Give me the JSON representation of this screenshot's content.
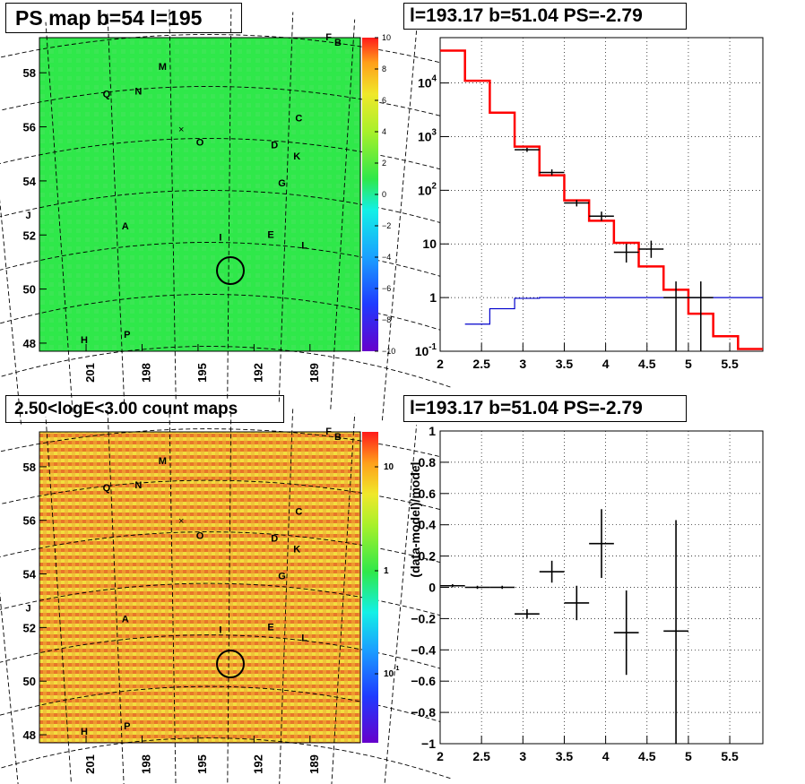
{
  "panels": {
    "tl_title": "PS map b=54 l=195",
    "tr_title": "l=193.17 b=51.04 PS=-2.79",
    "bl_title": "2.50<logE<3.00 count maps",
    "br_title": "l=193.17 b=51.04 PS=-2.79"
  },
  "colors": {
    "map_green": "#2fe84a",
    "count_orange": "#ee9a2c",
    "spectrum_red": "#ff0000",
    "spectrum_blue": "#0000cc",
    "data_black": "#000000"
  },
  "chart_data": [
    {
      "type": "heatmap",
      "panel": "top-left",
      "title": "PS map b=54 l=195",
      "x_ticks": [
        "201",
        "198",
        "195",
        "192",
        "189"
      ],
      "y_ticks": [
        "58",
        "56",
        "54",
        "52",
        "50",
        "48"
      ],
      "colorbar": {
        "range": [
          -10,
          10
        ],
        "ticks": [
          "10",
          "8",
          "6",
          "4",
          "2",
          "0",
          "−2",
          "−4",
          "−6",
          "−8",
          "−10"
        ]
      },
      "source_labels": [
        {
          "label": "F",
          "l": 188.0,
          "b": 59.2
        },
        {
          "label": "B",
          "l": 187.5,
          "b": 59.0
        },
        {
          "label": "M",
          "l": 196.9,
          "b": 58.1
        },
        {
          "label": "Q",
          "l": 199.9,
          "b": 57.1
        },
        {
          "label": "N",
          "l": 198.2,
          "b": 57.2
        },
        {
          "label": "C",
          "l": 189.6,
          "b": 56.2
        },
        {
          "label": "O",
          "l": 194.9,
          "b": 55.3
        },
        {
          "label": "D",
          "l": 190.9,
          "b": 55.2
        },
        {
          "label": "K",
          "l": 189.7,
          "b": 54.8
        },
        {
          "label": "G",
          "l": 190.5,
          "b": 53.8
        },
        {
          "label": "J",
          "l": 204.1,
          "b": 52.6
        },
        {
          "label": "A",
          "l": 198.9,
          "b": 52.2
        },
        {
          "label": "I",
          "l": 193.8,
          "b": 51.8
        },
        {
          "label": "E",
          "l": 191.1,
          "b": 51.9
        },
        {
          "label": "L",
          "l": 189.3,
          "b": 51.5
        },
        {
          "label": "H",
          "l": 201.1,
          "b": 48.0
        },
        {
          "label": "P",
          "l": 198.8,
          "b": 48.2
        }
      ],
      "marked_source": {
        "l": 193.17,
        "b": 51.04
      }
    },
    {
      "type": "line",
      "panel": "top-right",
      "title": "l=193.17 b=51.04 PS=-2.79",
      "x_ticks": [
        "2",
        "2.5",
        "3",
        "3.5",
        "4",
        "4.5",
        "5",
        "5.5"
      ],
      "y_ticks": [
        "10^-1",
        "1",
        "10",
        "10^2",
        "10^3",
        "10^4"
      ],
      "xlim": [
        2,
        5.9
      ],
      "ylim": [
        0.1,
        70000
      ],
      "yscale": "log",
      "grid": true,
      "series": [
        {
          "kind": "model-histogram",
          "color": "#ff0000",
          "bins": [
            2.0,
            2.3,
            2.6,
            2.9,
            3.2,
            3.5,
            3.8,
            4.1,
            4.4,
            4.7,
            5.0,
            5.3,
            5.6,
            5.9
          ],
          "values": [
            40000,
            11000,
            2800,
            650,
            190,
            65,
            27,
            10.5,
            3.8,
            1.4,
            0.5,
            0.19,
            0.11
          ]
        },
        {
          "kind": "model-histogram",
          "color": "#0000cc",
          "bins": [
            2.3,
            2.6,
            2.9,
            3.2,
            3.5,
            3.8,
            4.1,
            4.4,
            4.7,
            5.0,
            5.3,
            5.6,
            5.9
          ],
          "values": [
            0.32,
            0.62,
            0.97,
            1.0,
            1.0,
            1.0,
            1.0,
            1.0,
            1.0,
            1.0,
            1.0,
            1.0
          ]
        },
        {
          "kind": "data-points",
          "color": "#000000",
          "points": [
            {
              "x": 3.05,
              "y": 570,
              "xerr": 0.15,
              "ylo": 520,
              "yhi": 620
            },
            {
              "x": 3.35,
              "y": 215,
              "xerr": 0.15,
              "ylo": 190,
              "yhi": 245
            },
            {
              "x": 3.65,
              "y": 58,
              "xerr": 0.15,
              "ylo": 50,
              "yhi": 66
            },
            {
              "x": 3.95,
              "y": 33,
              "xerr": 0.15,
              "ylo": 27,
              "yhi": 40
            },
            {
              "x": 4.25,
              "y": 7,
              "xerr": 0.15,
              "ylo": 4.5,
              "yhi": 10
            },
            {
              "x": 4.55,
              "y": 8,
              "xerr": 0.15,
              "ylo": 5.5,
              "yhi": 11.5
            },
            {
              "x": 4.85,
              "y": 1.0,
              "xerr": 0.15,
              "ylo": 0.1,
              "yhi": 2.0
            },
            {
              "x": 5.15,
              "y": 1.0,
              "xerr": 0.15,
              "ylo": 0.1,
              "yhi": 2.0
            }
          ]
        }
      ]
    },
    {
      "type": "heatmap",
      "panel": "bottom-left",
      "title": "2.50<logE<3.00 count maps",
      "x_ticks": [
        "201",
        "198",
        "195",
        "192",
        "189"
      ],
      "y_ticks": [
        "58",
        "56",
        "54",
        "52",
        "50",
        "48"
      ],
      "colorbar": {
        "scale": "log",
        "ticks": [
          "10",
          "1",
          "10^-1"
        ]
      },
      "marked_source": {
        "l": 193.17,
        "b": 51.04
      }
    },
    {
      "type": "scatter",
      "panel": "bottom-right",
      "title": "l=193.17 b=51.04 PS=-2.79",
      "ylabel": "(data-model)/model",
      "x_ticks": [
        "2",
        "2.5",
        "3",
        "3.5",
        "4",
        "4.5",
        "5",
        "5.5"
      ],
      "y_ticks": [
        "1",
        "0.8",
        "0.6",
        "0.4",
        "0.2",
        "0",
        "−0.2",
        "−0.4",
        "−0.6",
        "−0.8",
        "−1"
      ],
      "xlim": [
        2,
        5.9
      ],
      "ylim": [
        -1,
        1
      ],
      "grid": true,
      "points": [
        {
          "x": 2.15,
          "y": 0.01,
          "xerr": 0.15,
          "yerr": 0.01
        },
        {
          "x": 2.45,
          "y": 0.0,
          "xerr": 0.15,
          "yerr": 0.01
        },
        {
          "x": 2.75,
          "y": 0.0,
          "xerr": 0.15,
          "yerr": 0.01
        },
        {
          "x": 3.05,
          "y": -0.17,
          "xerr": 0.15,
          "yerr": 0.03
        },
        {
          "x": 3.35,
          "y": 0.1,
          "xerr": 0.15,
          "yerr": 0.07
        },
        {
          "x": 3.65,
          "y": -0.1,
          "xerr": 0.15,
          "yerr": 0.11
        },
        {
          "x": 3.95,
          "y": 0.28,
          "xerr": 0.15,
          "yerr": 0.22
        },
        {
          "x": 4.25,
          "y": -0.29,
          "xerr": 0.15,
          "yerr": 0.27
        },
        {
          "x": 4.85,
          "y": -0.28,
          "xerr": 0.15,
          "ylo": -1.0,
          "yhi": 0.43
        }
      ]
    }
  ]
}
